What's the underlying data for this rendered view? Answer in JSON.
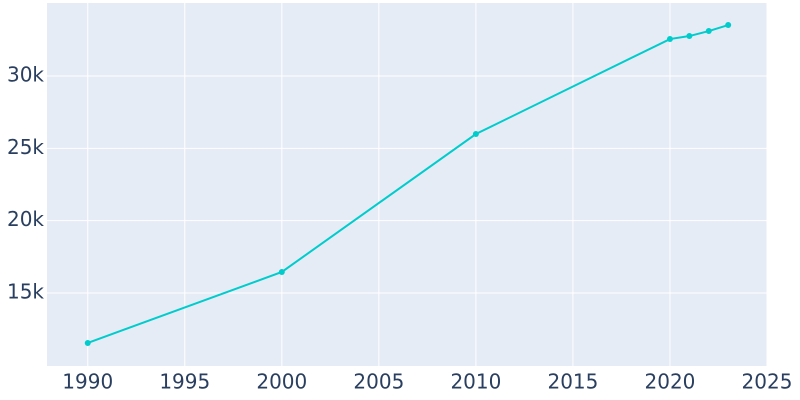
{
  "chart_data": {
    "type": "line",
    "x": [
      1990,
      2000,
      2010,
      2020,
      2021,
      2022,
      2023
    ],
    "series": [
      {
        "color": "#00cccc",
        "values": [
          11544,
          16452,
          25990,
          32558,
          32765,
          33110,
          33525
        ]
      }
    ],
    "xlim": [
      1987.9,
      2025
    ],
    "xticks": [
      1990,
      1995,
      2000,
      2005,
      2010,
      2015,
      2020,
      2025
    ],
    "ylim": [
      9950,
      35050
    ],
    "yticks": [
      {
        "value": 15000,
        "label": "15k"
      },
      {
        "value": 20000,
        "label": "20k"
      },
      {
        "value": 25000,
        "label": "25k"
      },
      {
        "value": 30000,
        "label": "30k"
      }
    ],
    "grid": true
  }
}
